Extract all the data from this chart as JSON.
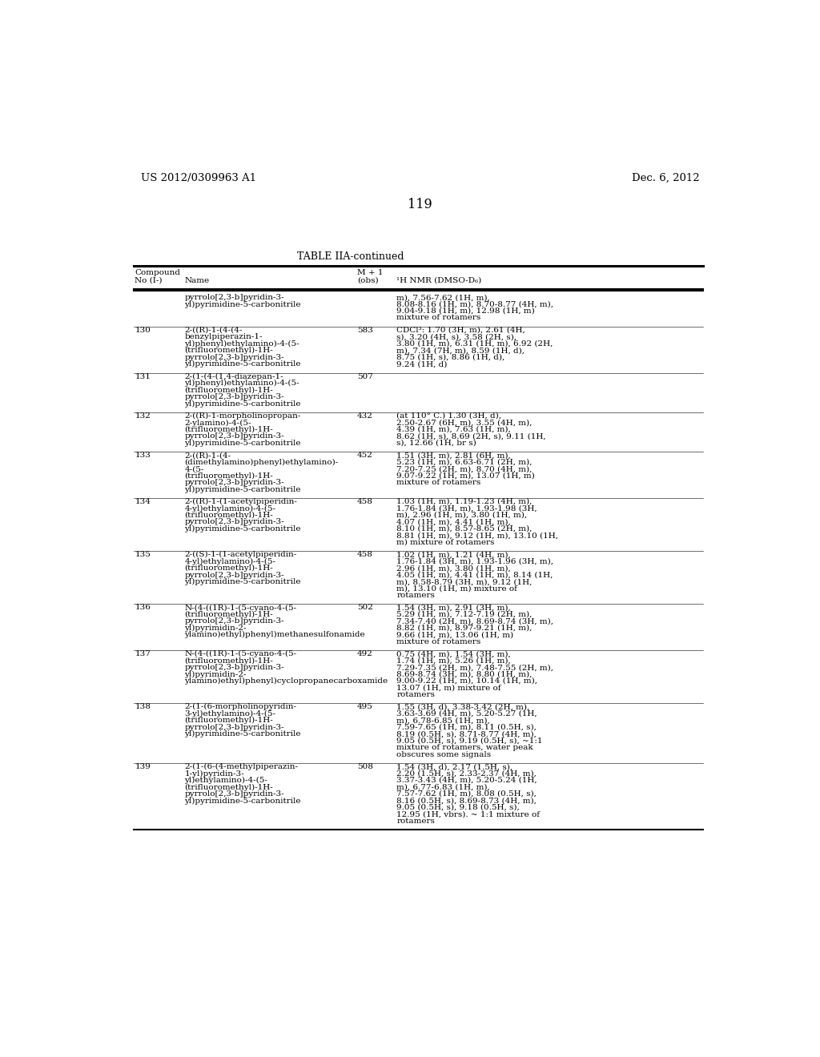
{
  "header_left": "US 2012/0309963 A1",
  "header_right": "Dec. 6, 2012",
  "page_number": "119",
  "table_title": "TABLE IIA-continued",
  "bg_color": "#ffffff",
  "text_color": "#000000",
  "font_size": 7.5,
  "header_font_size": 9.5,
  "rows": [
    {
      "no": "",
      "name": "pyrrolo[2,3-b]pyridin-3-\nyl)pyrimidine-5-carbonitrile",
      "mplus1": "",
      "nmr": "m), 7.56-7.62 (1H, m),\n8.08-8.16 (1H, m), 8.70-8.77 (4H, m),\n9.04-9.18 (1H, m), 12.98 (1H, m)\nmixture of rotamers"
    },
    {
      "no": "130",
      "name": "2-((R)-1-(4-(4-\nbenzylpiperazin-1-\nyl)phenyl)ethylamino)-4-(5-\n(trifluoromethyl)-1H-\npyrrolo[2,3-b]pyridin-3-\nyl)pyrimidine-5-carbonitrile",
      "mplus1": "583",
      "nmr": "CDCl³: 1.70 (3H, m), 2.61 (4H,\ns), 3.20 (4H, s), 3.58 (2H, s),\n3.80 (1H, m), 6.31 (1H, m), 6.92 (2H,\nm), 7.34 (7H, m), 8.59 (1H, d),\n8.75 (1H, s), 8.86 (1H, d),\n9.24 (1H, d)"
    },
    {
      "no": "131",
      "name": "2-(1-(4-(1,4-diazepan-1-\nyl)phenyl)ethylamino)-4-(5-\n(trifluoromethyl)-1H-\npyrrolo[2,3-b]pyridin-3-\nyl)pyrimidine-5-carbonitrile",
      "mplus1": "507",
      "nmr": ""
    },
    {
      "no": "132",
      "name": "2-((R)-1-morpholinopropan-\n2-ylamino)-4-(5-\n(trifluoromethyl)-1H-\npyrrolo[2,3-b]pyridin-3-\nyl)pyrimidine-5-carbonitrile",
      "mplus1": "432",
      "nmr": "(at 110° C.) 1.30 (3H, d),\n2.50-2.67 (6H, m), 3.55 (4H, m),\n4.39 (1H, m), 7.63 (1H, m),\n8.62 (1H, s), 8.69 (2H, s), 9.11 (1H,\ns), 12.66 (1H, br s)"
    },
    {
      "no": "133",
      "name": "2-((R)-1-(4-\n(dimethylamino)phenyl)ethylamino)-\n4-(5-\n(trifluoromethyl)-1H-\npyrrolo[2,3-b]pyridin-3-\nyl)pyrimidine-5-carbonitrile",
      "mplus1": "452",
      "nmr": "1.51 (3H, m), 2.81 (6H, m),\n5.23 (1H, m), 6.63-6.71 (2H, m),\n7.20-7.25 (2H, m), 8.70 (4H, m),\n9.07-9.22 (1H, m), 13.07 (1H, m)\nmixture of rotamers"
    },
    {
      "no": "134",
      "name": "2-((R)-1-(1-acetylpiperidin-\n4-yl)ethylamino)-4-(5-\n(trifluoromethyl)-1H-\npyrrolo[2,3-b]pyridin-3-\nyl)pyrimidine-5-carbonitrile",
      "mplus1": "458",
      "nmr": "1.03 (1H, m), 1.19-1.23 (4H, m),\n1.76-1.84 (3H, m), 1.93-1.98 (3H,\nm), 2.96 (1H, m), 3.80 (1H, m),\n4.07 (1H, m), 4.41 (1H, m),\n8.10 (1H, m), 8.57-8.65 (2H, m),\n8.81 (1H, m), 9.12 (1H, m), 13.10 (1H,\nm) mixture of rotamers"
    },
    {
      "no": "135",
      "name": "2-((S)-1-(1-acetylpiperidin-\n4-yl)ethylamino)-4-(5-\n(trifluoromethyl)-1H-\npyrrolo[2,3-b]pyridin-3-\nyl)pyrimidine-5-carbonitrile",
      "mplus1": "458",
      "nmr": "1.02 (1H, m), 1.21 (4H, m),\n1.76-1.84 (3H, m), 1.93-1.96 (3H, m),\n2.96 (1H, m), 3.80 (1H, m),\n4.05 (1H, m), 4.41 (1H, m), 8.14 (1H,\nm), 8.58-8.79 (3H, m), 9.12 (1H,\nm), 13.10 (1H, m) mixture of\nrotamers"
    },
    {
      "no": "136",
      "name": "N-(4-((1R)-1-(5-cyano-4-(5-\n(trifluoromethyl)-1H-\npyrrolo[2,3-b]pyridin-3-\nyl)pyrimidin-2-\nylamino)ethyl)phenyl)methanesulfonamide",
      "mplus1": "502",
      "nmr": "1.54 (3H, m), 2.91 (3H, m),\n5.29 (1H, m), 7.12-7.19 (2H, m),\n7.34-7.40 (2H, m), 8.69-8.74 (3H, m),\n8.82 (1H, m), 8.97-9.21 (1H, m),\n9.66 (1H, m), 13.06 (1H, m)\nmixture of rotamers"
    },
    {
      "no": "137",
      "name": "N-(4-((1R)-1-(5-cyano-4-(5-\n(trifluoromethyl)-1H-\npyrrolo[2,3-b]pyridin-3-\nyl)pyrimidin-2-\nylamino)ethyl)phenyl)cyclopropanecarboxamide",
      "mplus1": "492",
      "nmr": "0.75 (4H, m), 1.54 (3H, m),\n1.74 (1H, m), 5.26 (1H, m),\n7.29-7.35 (2H, m), 7.48-7.55 (2H, m),\n8.69-8.74 (3H, m), 8.80 (1H, m),\n9.00-9.22 (1H, m), 10.14 (1H, m),\n13.07 (1H, m) mixture of\nrotamers"
    },
    {
      "no": "138",
      "name": "2-(1-(6-morpholinopyridin-\n3-yl)ethylamino)-4-(5-\n(trifluoromethyl)-1H-\npyrrolo[2,3-b]pyridin-3-\nyl)pyrimidine-5-carbonitrile",
      "mplus1": "495",
      "nmr": "1.55 (3H, d), 3.38-3.42 (2H, m),\n3.63-3.69 (4H, m), 5.20-5.27 (1H,\nm), 6.78-6.85 (1H, m),\n7.59-7.65 (1H, m), 8.11 (0.5H, s),\n8.19 (0.5H, s), 8.71-8.77 (4H, m),\n9.05 (0.5H, s), 9.19 (0.5H, s), ~1:1\nmixture of rotamers, water peak\nobscures some signals"
    },
    {
      "no": "139",
      "name": "2-(1-(6-(4-methylpiperazin-\n1-yl)pyridin-3-\nyl)ethylamino)-4-(5-\n(trifluoromethyl)-1H-\npyrrolo[2,3-b]pyridin-3-\nyl)pyrimidine-5-carbonitrile",
      "mplus1": "508",
      "nmr": "1.54 (3H, d), 2.17 (1.5H, s),\n2.20 (1.5H, s), 2.33-2.37 (4H, m),\n3.37-3.43 (4H, m), 5.20-5.24 (1H,\nm), 6.77-6.83 (1H, m),\n7.57-7.62 (1H, m), 8.08 (0.5H, s),\n8.16 (0.5H, s), 8.69-8.73 (4H, m),\n9.05 (0.5H, s), 9.18 (0.5H, s),\n12.95 (1H, vbrs). ~ 1:1 mixture of\nrotamers"
    }
  ]
}
